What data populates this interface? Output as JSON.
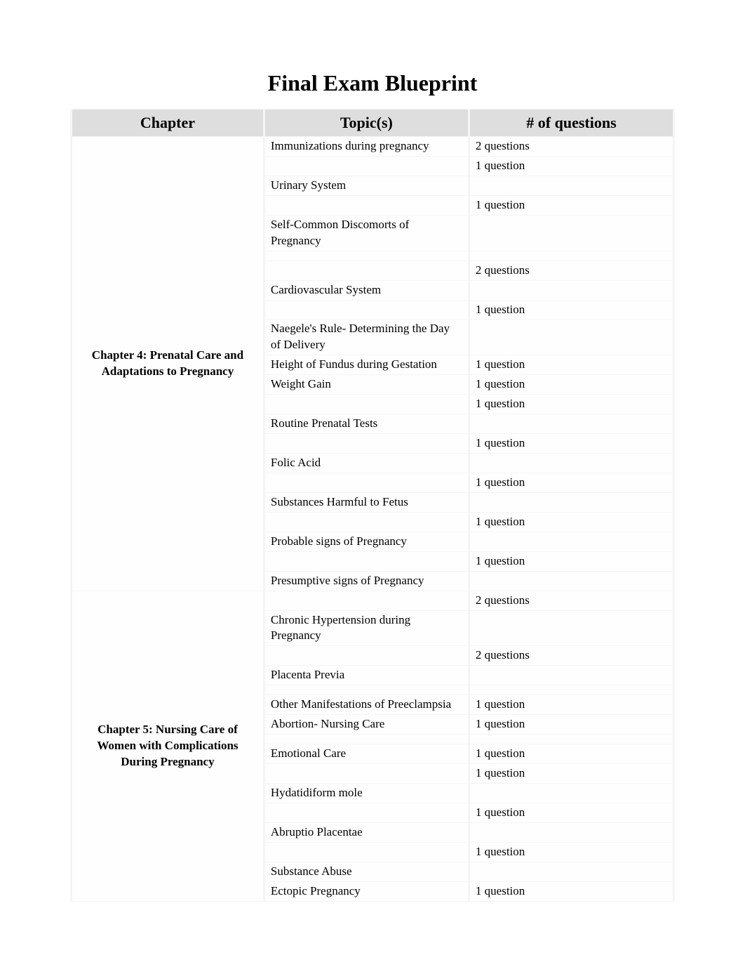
{
  "title": "Final Exam Blueprint",
  "columns": {
    "chapter": "Chapter",
    "topic": "Topic(s)",
    "questions": "# of questions"
  },
  "sections": [
    {
      "chapter": "Chapter 4:  Prenatal Care and Adaptations to Pregnancy",
      "rows": [
        {
          "topic": "Immunizations during pregnancy",
          "q": "2 questions",
          "gapBefore": false,
          "gapAfter": false
        },
        {
          "topic": "",
          "q": "1 question",
          "gapBefore": false,
          "gapAfter": false
        },
        {
          "topic": "Urinary System",
          "q": "",
          "gapBefore": false,
          "gapAfter": false
        },
        {
          "topic": "",
          "q": "1 question",
          "gapBefore": false,
          "gapAfter": false
        },
        {
          "topic": "Self-Common Discomorts of Pregnancy",
          "q": "",
          "gapBefore": false,
          "gapAfter": true
        },
        {
          "topic": "",
          "q": "2 questions",
          "gapBefore": false,
          "gapAfter": false
        },
        {
          "topic": "Cardiovascular System",
          "q": "",
          "gapBefore": false,
          "gapAfter": false
        },
        {
          "topic": "",
          "q": "1 question",
          "gapBefore": false,
          "gapAfter": false
        },
        {
          "topic": "Naegele's Rule- Determining the Day of Delivery",
          "q": "",
          "gapBefore": false,
          "gapAfter": false
        },
        {
          "topic": "Height of Fundus during Gestation",
          "q": "1 question",
          "gapBefore": false,
          "gapAfter": false
        },
        {
          "topic": "Weight Gain",
          "q": "1 question",
          "gapBefore": false,
          "gapAfter": false
        },
        {
          "topic": "",
          "q": "1 question",
          "gapBefore": false,
          "gapAfter": false
        },
        {
          "topic": "Routine Prenatal Tests",
          "q": "",
          "gapBefore": false,
          "gapAfter": false
        },
        {
          "topic": "",
          "q": "1 question",
          "gapBefore": false,
          "gapAfter": false
        },
        {
          "topic": "Folic Acid",
          "q": "",
          "gapBefore": false,
          "gapAfter": false
        },
        {
          "topic": "",
          "q": "1 question",
          "gapBefore": false,
          "gapAfter": false
        },
        {
          "topic": "Substances Harmful to Fetus",
          "q": "",
          "gapBefore": false,
          "gapAfter": false
        },
        {
          "topic": "",
          "q": "1 question",
          "gapBefore": false,
          "gapAfter": false
        },
        {
          "topic": "Probable signs of Pregnancy",
          "q": "",
          "gapBefore": false,
          "gapAfter": false
        },
        {
          "topic": "",
          "q": "1 question",
          "gapBefore": false,
          "gapAfter": false
        },
        {
          "topic": "Presumptive signs of Pregnancy",
          "q": "",
          "gapBefore": false,
          "gapAfter": false
        }
      ]
    },
    {
      "chapter": "Chapter 5: Nursing Care of Women with Complications During Pregnancy",
      "rows": [
        {
          "topic": "",
          "q": "2 questions",
          "gapBefore": false,
          "gapAfter": false
        },
        {
          "topic": "Chronic Hypertension during Pregnancy",
          "q": "",
          "gapBefore": false,
          "gapAfter": false
        },
        {
          "topic": "",
          "q": "2 questions",
          "gapBefore": false,
          "gapAfter": false
        },
        {
          "topic": "Placenta Previa",
          "q": "",
          "gapBefore": false,
          "gapAfter": true
        },
        {
          "topic": "Other Manifestations of Preeclampsia",
          "q": "1 question",
          "gapBefore": false,
          "gapAfter": false
        },
        {
          "topic": "Abortion- Nursing Care",
          "q": "1 question",
          "gapBefore": false,
          "gapAfter": true
        },
        {
          "topic": "Emotional Care",
          "q": "1 question",
          "gapBefore": false,
          "gapAfter": false
        },
        {
          "topic": "",
          "q": "1 question",
          "gapBefore": false,
          "gapAfter": false
        },
        {
          "topic": "Hydatidiform mole",
          "q": "",
          "gapBefore": false,
          "gapAfter": false
        },
        {
          "topic": "",
          "q": "1 question",
          "gapBefore": false,
          "gapAfter": false
        },
        {
          "topic": "Abruptio Placentae",
          "q": "",
          "gapBefore": false,
          "gapAfter": false
        },
        {
          "topic": "",
          "q": "1 question",
          "gapBefore": false,
          "gapAfter": false
        },
        {
          "topic": "Substance Abuse",
          "q": "",
          "gapBefore": false,
          "gapAfter": false
        },
        {
          "topic": "Ectopic Pregnancy",
          "q": "1 question",
          "gapBefore": false,
          "gapAfter": false
        }
      ]
    }
  ],
  "colors": {
    "header_bg": "#dedede",
    "cell_bg": "#fefefe",
    "border": "#f5f5f5",
    "text": "#000000"
  }
}
